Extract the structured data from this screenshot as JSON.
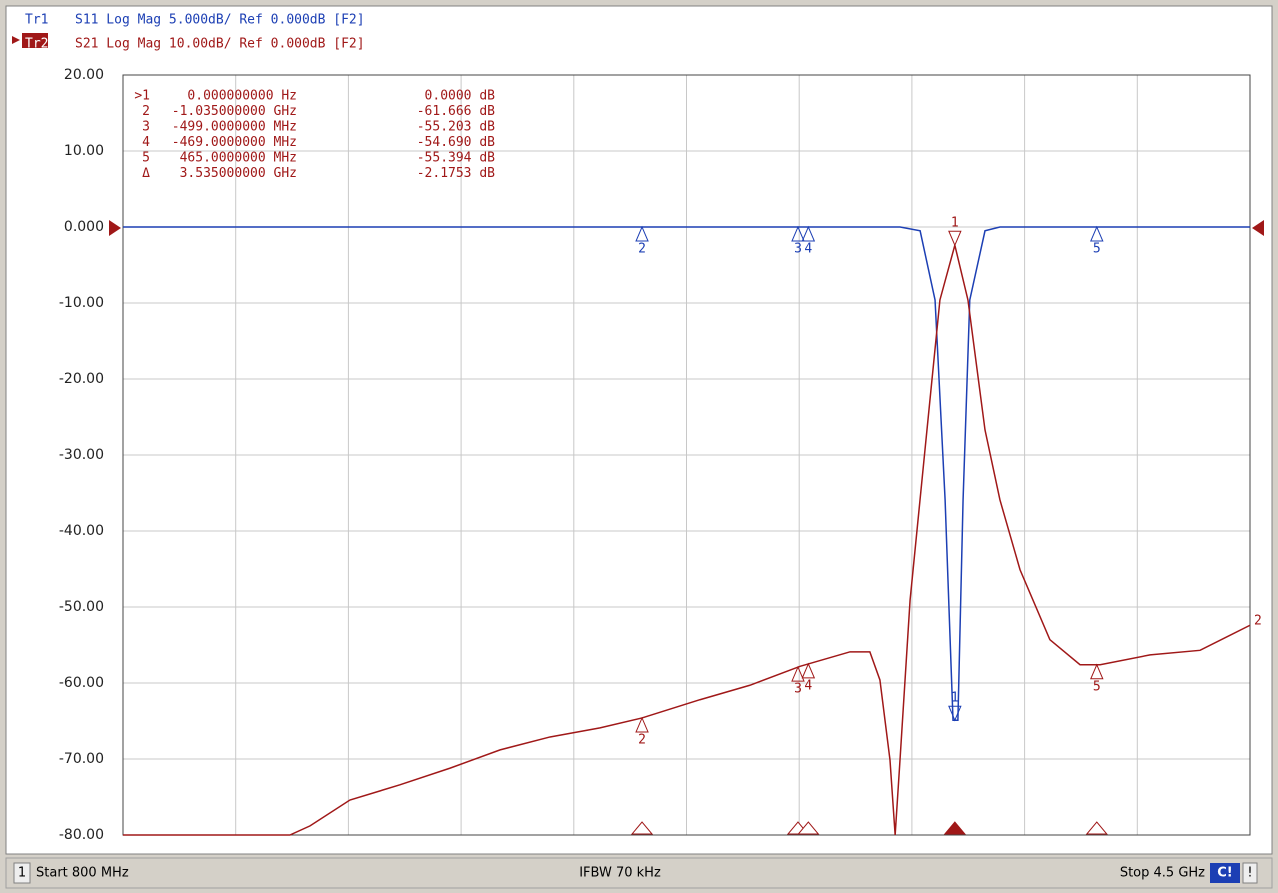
{
  "chart_data": {
    "type": "line",
    "xlim": [
      0.8,
      4.5
    ],
    "xticks": [
      0.8,
      1.17,
      1.54,
      1.91,
      2.28,
      2.65,
      3.02,
      3.39,
      3.76,
      4.13,
      4.5
    ],
    "ylim": [
      -80,
      20
    ],
    "yticks": [
      {
        "value": 20,
        "label": "20.00"
      },
      {
        "value": 10,
        "label": "10.00"
      },
      {
        "value": 0,
        "label": "0.000"
      },
      {
        "value": -10,
        "label": "-10.00"
      },
      {
        "value": -20,
        "label": "-20.00"
      },
      {
        "value": -30,
        "label": "-30.00"
      },
      {
        "value": -40,
        "label": "-40.00"
      },
      {
        "value": -50,
        "label": "-50.00"
      },
      {
        "value": -60,
        "label": "-60.00"
      },
      {
        "value": -70,
        "label": "-70.00"
      },
      {
        "value": -80,
        "label": "-80.00"
      }
    ],
    "grid": true,
    "series": [
      {
        "name": "Tr1",
        "label": "S11 Log Mag 5.000dB/ Ref 0.000dB [F2]",
        "color": "#1c3fb4",
        "x": [
          0.8,
          1.5,
          2.2,
          2.9,
          3.351,
          3.417,
          3.466,
          3.499,
          3.525,
          3.541,
          3.558,
          3.58,
          3.63,
          3.679,
          4.1,
          4.5
        ],
        "values": [
          0,
          0,
          0,
          0,
          0,
          -0.5,
          -9.6,
          -35.9,
          -64.9,
          -64.9,
          -35.9,
          -9.6,
          -0.5,
          0,
          0,
          0
        ]
      },
      {
        "name": "Tr2",
        "label": "S21 Log Mag 10.00dB/ Ref 0.000dB [F2]",
        "color": "#a01818",
        "end_label": "2",
        "x": [
          0.8,
          1.348,
          1.414,
          1.545,
          1.709,
          1.874,
          2.038,
          2.202,
          2.366,
          2.504,
          2.694,
          2.858,
          3.023,
          3.187,
          3.252,
          3.285,
          3.318,
          3.335,
          3.351,
          3.384,
          3.433,
          3.482,
          3.531,
          3.574,
          3.63,
          3.679,
          3.745,
          3.843,
          3.942,
          4.008,
          4.172,
          4.336,
          4.5
        ],
        "values": [
          -80,
          -80,
          -78.8,
          -75.4,
          -73.4,
          -71.2,
          -68.8,
          -67.1,
          -65.9,
          -64.6,
          -62.2,
          -60.3,
          -57.8,
          -55.9,
          -55.9,
          -59.6,
          -70.1,
          -80,
          -70.1,
          -49.1,
          -29.3,
          -9.6,
          -2.4,
          -9.6,
          -26.7,
          -35.9,
          -45.1,
          -54.3,
          -57.6,
          -57.6,
          -56.3,
          -55.7,
          -52.4
        ]
      }
    ],
    "markers": [
      {
        "label": "1",
        "x": 3.531
      },
      {
        "label": "2",
        "x": 2.504
      },
      {
        "label": "3",
        "x": 3.016
      },
      {
        "label": "4",
        "x": 3.05
      },
      {
        "label": "5",
        "x": 3.997
      }
    ],
    "marker_table": [
      [
        ">1",
        "0.000000000 Hz",
        "0.0000 dB"
      ],
      [
        "2",
        "-1.035000000 GHz",
        "-61.666 dB"
      ],
      [
        "3",
        "-499.0000000 MHz",
        "-55.203 dB"
      ],
      [
        "4",
        "-469.0000000 MHz",
        "-54.690 dB"
      ],
      [
        "5",
        "465.0000000 MHz",
        "-55.394 dB"
      ],
      [
        "Δ",
        "3.535000000 GHz",
        "-2.1753 dB"
      ]
    ],
    "status_bar": {
      "channel": "1",
      "start": "Start 800 MHz",
      "ifbw": "IFBW 70 kHz",
      "stop": "Stop 4.5 GHz",
      "cal": "C!",
      "flag": "!"
    }
  }
}
